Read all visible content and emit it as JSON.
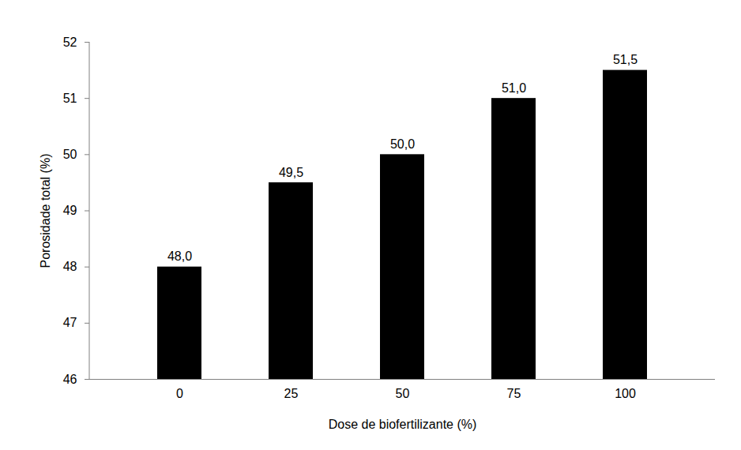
{
  "chart_data": {
    "type": "bar",
    "x_label": "Dose de biofertilizante (%)",
    "y_label": "Porosidade total (%)",
    "categories": [
      "0",
      "25",
      "50",
      "75",
      "100"
    ],
    "values": [
      48.0,
      49.5,
      50.0,
      51.0,
      51.5
    ],
    "value_labels": [
      "48,0",
      "49,5",
      "50,0",
      "51,0",
      "51,5"
    ],
    "color": "#000000",
    "ylim": [
      46,
      52
    ],
    "yticks": [
      46,
      47,
      48,
      49,
      50,
      51,
      52
    ],
    "grid": false,
    "data_labels": true
  }
}
